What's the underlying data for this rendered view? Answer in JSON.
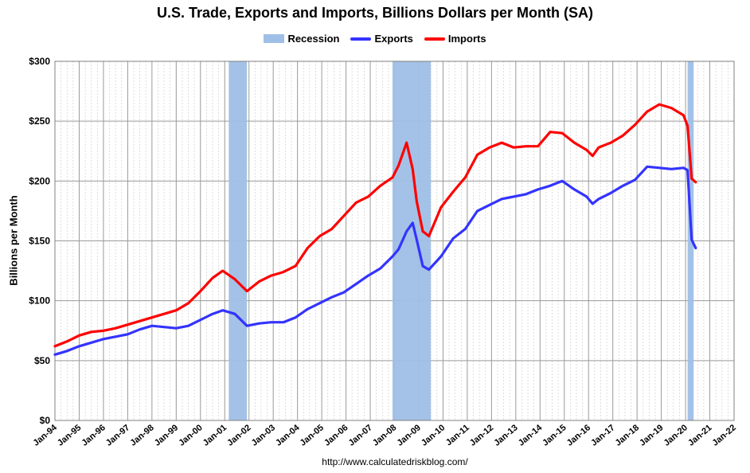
{
  "chart_data": {
    "type": "line",
    "title": "U.S. Trade, Exports and Imports, Billions Dollars per Month (SA)",
    "ylabel": "Billions per Month",
    "xlabel": "",
    "source": "http://www.calculatedriskblog.com/",
    "ylim": [
      0,
      300
    ],
    "xlim": [
      "1994-01",
      "2022-01"
    ],
    "grid": true,
    "legend_position": "top-center",
    "y_ticks": [
      0,
      50,
      100,
      150,
      200,
      250,
      300
    ],
    "y_tick_labels": [
      "$0",
      "$50",
      "$100",
      "$150",
      "$200",
      "$250",
      "$300"
    ],
    "x_tick_labels": [
      "Jan-94",
      "Jan-95",
      "Jan-96",
      "Jan-97",
      "Jan-98",
      "Jan-99",
      "Jan-00",
      "Jan-01",
      "Jan-02",
      "Jan-03",
      "Jan-04",
      "Jan-05",
      "Jan-06",
      "Jan-07",
      "Jan-08",
      "Jan-09",
      "Jan-10",
      "Jan-11",
      "Jan-12",
      "Jan-13",
      "Jan-14",
      "Jan-15",
      "Jan-16",
      "Jan-17",
      "Jan-18",
      "Jan-19",
      "Jan-20",
      "Jan-21",
      "Jan-22"
    ],
    "recessions": [
      {
        "name": "Recession",
        "start": "2001-03",
        "end": "2001-11"
      },
      {
        "name": "Recession",
        "start": "2007-12",
        "end": "2009-06"
      },
      {
        "name": "Recession",
        "start": "2020-02",
        "end": "2020-04"
      }
    ],
    "series": [
      {
        "name": "Exports",
        "color": "#3333ff",
        "points": [
          [
            "1994-01",
            55
          ],
          [
            "1994-07",
            58
          ],
          [
            "1995-01",
            62
          ],
          [
            "1995-07",
            65
          ],
          [
            "1996-01",
            68
          ],
          [
            "1996-07",
            70
          ],
          [
            "1997-01",
            72
          ],
          [
            "1997-07",
            76
          ],
          [
            "1998-01",
            79
          ],
          [
            "1998-07",
            78
          ],
          [
            "1999-01",
            77
          ],
          [
            "1999-07",
            79
          ],
          [
            "2000-01",
            84
          ],
          [
            "2000-07",
            89
          ],
          [
            "2000-12",
            92
          ],
          [
            "2001-06",
            89
          ],
          [
            "2001-12",
            79
          ],
          [
            "2002-06",
            81
          ],
          [
            "2002-12",
            82
          ],
          [
            "2003-06",
            82
          ],
          [
            "2003-12",
            86
          ],
          [
            "2004-06",
            93
          ],
          [
            "2004-12",
            98
          ],
          [
            "2005-06",
            103
          ],
          [
            "2005-12",
            107
          ],
          [
            "2006-06",
            114
          ],
          [
            "2006-12",
            121
          ],
          [
            "2007-06",
            127
          ],
          [
            "2007-12",
            137
          ],
          [
            "2008-03",
            143
          ],
          [
            "2008-07",
            158
          ],
          [
            "2008-10",
            165
          ],
          [
            "2008-12",
            151
          ],
          [
            "2009-03",
            129
          ],
          [
            "2009-06",
            126
          ],
          [
            "2009-12",
            137
          ],
          [
            "2010-06",
            152
          ],
          [
            "2010-12",
            160
          ],
          [
            "2011-06",
            175
          ],
          [
            "2011-12",
            180
          ],
          [
            "2012-06",
            185
          ],
          [
            "2012-12",
            187
          ],
          [
            "2013-06",
            189
          ],
          [
            "2013-12",
            193
          ],
          [
            "2014-06",
            196
          ],
          [
            "2014-12",
            200
          ],
          [
            "2015-06",
            193
          ],
          [
            "2015-12",
            187
          ],
          [
            "2016-03",
            181
          ],
          [
            "2016-06",
            185
          ],
          [
            "2016-12",
            190
          ],
          [
            "2017-06",
            196
          ],
          [
            "2017-12",
            201
          ],
          [
            "2018-06",
            212
          ],
          [
            "2018-12",
            211
          ],
          [
            "2019-06",
            210
          ],
          [
            "2019-12",
            211
          ],
          [
            "2020-02",
            209
          ],
          [
            "2020-04",
            151
          ],
          [
            "2020-06",
            144
          ]
        ]
      },
      {
        "name": "Imports",
        "color": "#ff0000",
        "points": [
          [
            "1994-01",
            62
          ],
          [
            "1994-07",
            66
          ],
          [
            "1995-01",
            71
          ],
          [
            "1995-07",
            74
          ],
          [
            "1996-01",
            75
          ],
          [
            "1996-07",
            77
          ],
          [
            "1997-01",
            80
          ],
          [
            "1997-07",
            83
          ],
          [
            "1998-01",
            86
          ],
          [
            "1998-07",
            89
          ],
          [
            "1999-01",
            92
          ],
          [
            "1999-07",
            98
          ],
          [
            "2000-01",
            108
          ],
          [
            "2000-07",
            119
          ],
          [
            "2000-12",
            125
          ],
          [
            "2001-06",
            118
          ],
          [
            "2001-12",
            108
          ],
          [
            "2002-06",
            116
          ],
          [
            "2002-12",
            121
          ],
          [
            "2003-06",
            124
          ],
          [
            "2003-12",
            129
          ],
          [
            "2004-06",
            144
          ],
          [
            "2004-12",
            154
          ],
          [
            "2005-06",
            160
          ],
          [
            "2005-12",
            171
          ],
          [
            "2006-06",
            182
          ],
          [
            "2006-12",
            187
          ],
          [
            "2007-06",
            196
          ],
          [
            "2007-12",
            203
          ],
          [
            "2008-03",
            213
          ],
          [
            "2008-07",
            232
          ],
          [
            "2008-10",
            210
          ],
          [
            "2008-12",
            183
          ],
          [
            "2009-03",
            158
          ],
          [
            "2009-06",
            154
          ],
          [
            "2009-12",
            178
          ],
          [
            "2010-06",
            191
          ],
          [
            "2010-12",
            203
          ],
          [
            "2011-06",
            222
          ],
          [
            "2011-12",
            228
          ],
          [
            "2012-06",
            232
          ],
          [
            "2012-12",
            228
          ],
          [
            "2013-06",
            229
          ],
          [
            "2013-12",
            229
          ],
          [
            "2014-06",
            241
          ],
          [
            "2014-12",
            240
          ],
          [
            "2015-06",
            232
          ],
          [
            "2015-12",
            226
          ],
          [
            "2016-03",
            221
          ],
          [
            "2016-06",
            228
          ],
          [
            "2016-12",
            232
          ],
          [
            "2017-06",
            238
          ],
          [
            "2017-12",
            247
          ],
          [
            "2018-06",
            258
          ],
          [
            "2018-12",
            264
          ],
          [
            "2019-06",
            261
          ],
          [
            "2019-12",
            255
          ],
          [
            "2020-02",
            246
          ],
          [
            "2020-04",
            202
          ],
          [
            "2020-06",
            199
          ]
        ]
      }
    ]
  }
}
